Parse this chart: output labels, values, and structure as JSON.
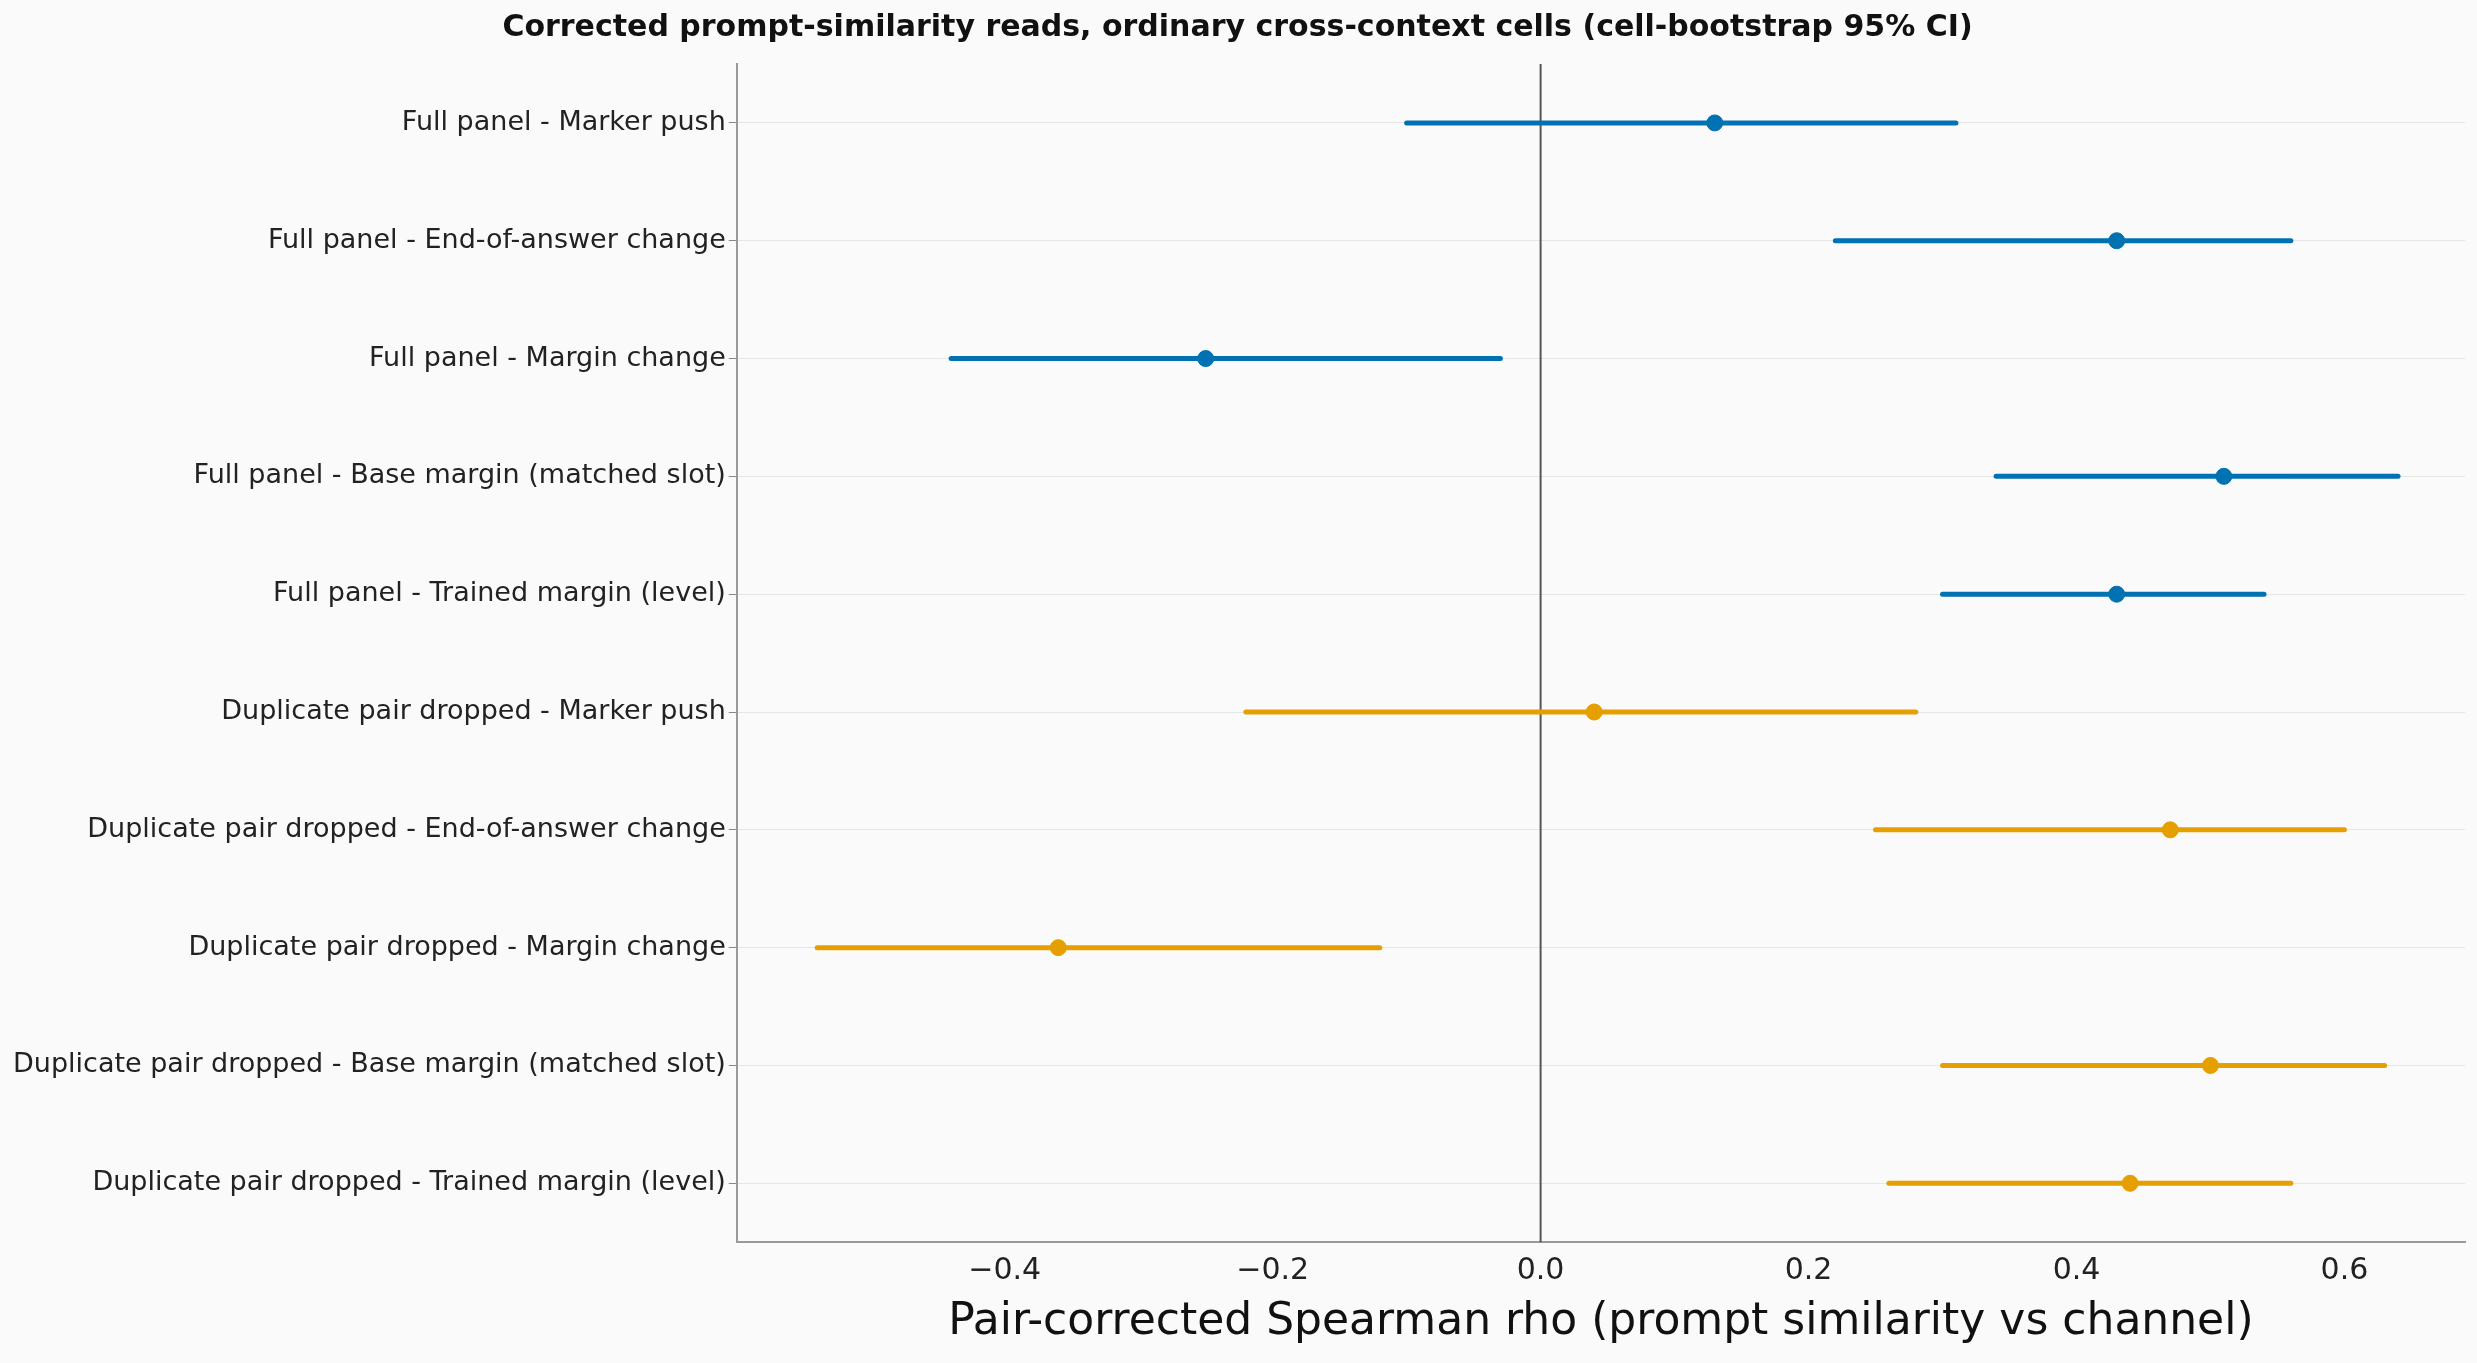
{
  "chart_data": {
    "type": "scatter",
    "orientation": "horizontal",
    "title": "Corrected prompt-similarity reads, ordinary cross-context cells (cell-bootstrap 95% CI)",
    "xlabel": "Pair-corrected Spearman rho (prompt similarity vs channel)",
    "categories": [
      "Full panel - Marker push",
      "Full panel - End-of-answer change",
      "Full panel - Margin change",
      "Full panel - Base margin (matched slot)",
      "Full panel - Trained margin (level)",
      "Duplicate pair dropped - Marker push",
      "Duplicate pair dropped - End-of-answer change",
      "Duplicate pair dropped - Margin change",
      "Duplicate pair dropped - Base margin (matched slot)",
      "Duplicate pair dropped - Trained margin (level)"
    ],
    "series": [
      {
        "color": "#0072b2",
        "values": [
          0.13,
          0.43,
          -0.25,
          0.51,
          0.43,
          null,
          null,
          null,
          null,
          null
        ],
        "errors": [
          [
            -0.1,
            0.31
          ],
          [
            0.22,
            0.56
          ],
          [
            -0.44,
            -0.03
          ],
          [
            0.34,
            0.64
          ],
          [
            0.3,
            0.54
          ],
          null,
          null,
          null,
          null,
          null
        ]
      },
      {
        "color": "#e69f00",
        "values": [
          null,
          null,
          null,
          null,
          null,
          0.04,
          0.47,
          -0.36,
          0.5,
          0.44
        ],
        "errors": [
          null,
          null,
          null,
          null,
          null,
          [
            -0.22,
            0.28
          ],
          [
            0.25,
            0.6
          ],
          [
            -0.54,
            -0.12
          ],
          [
            0.3,
            0.63
          ],
          [
            0.26,
            0.56
          ]
        ]
      }
    ],
    "xlim": [
      -0.6,
      0.69
    ],
    "xticks": [
      {
        "value": -0.4,
        "label": "−0.4"
      },
      {
        "value": -0.2,
        "label": "−0.2"
      },
      {
        "value": 0,
        "label": "0.0"
      },
      {
        "value": 0.2,
        "label": "0.2"
      },
      {
        "value": 0.4,
        "label": "0.4"
      },
      {
        "value": 0.6,
        "label": "0.6"
      }
    ],
    "grid": "y",
    "marker": "circle",
    "ref_lines": [
      {
        "axis": "x",
        "value": 0,
        "color": "#555555"
      }
    ]
  }
}
